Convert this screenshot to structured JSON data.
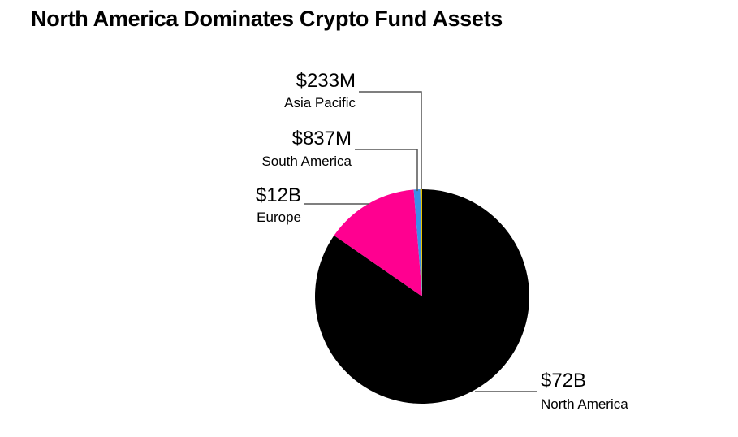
{
  "title": "North America Dominates Crypto Fund Assets",
  "chart_data": {
    "type": "pie",
    "title": "North America Dominates Crypto Fund Assets",
    "slices": [
      {
        "label": "North America",
        "value_label": "$72B",
        "value": 72000,
        "color": "#000000"
      },
      {
        "label": "Europe",
        "value_label": "$12B",
        "value": 12000,
        "color": "#ff0090"
      },
      {
        "label": "South America",
        "value_label": "$837M",
        "value": 837,
        "color": "#3a8fe8"
      },
      {
        "label": "Asia Pacific",
        "value_label": "$233M",
        "value": 233,
        "color": "#e8c200"
      }
    ],
    "units": "USD millions"
  }
}
